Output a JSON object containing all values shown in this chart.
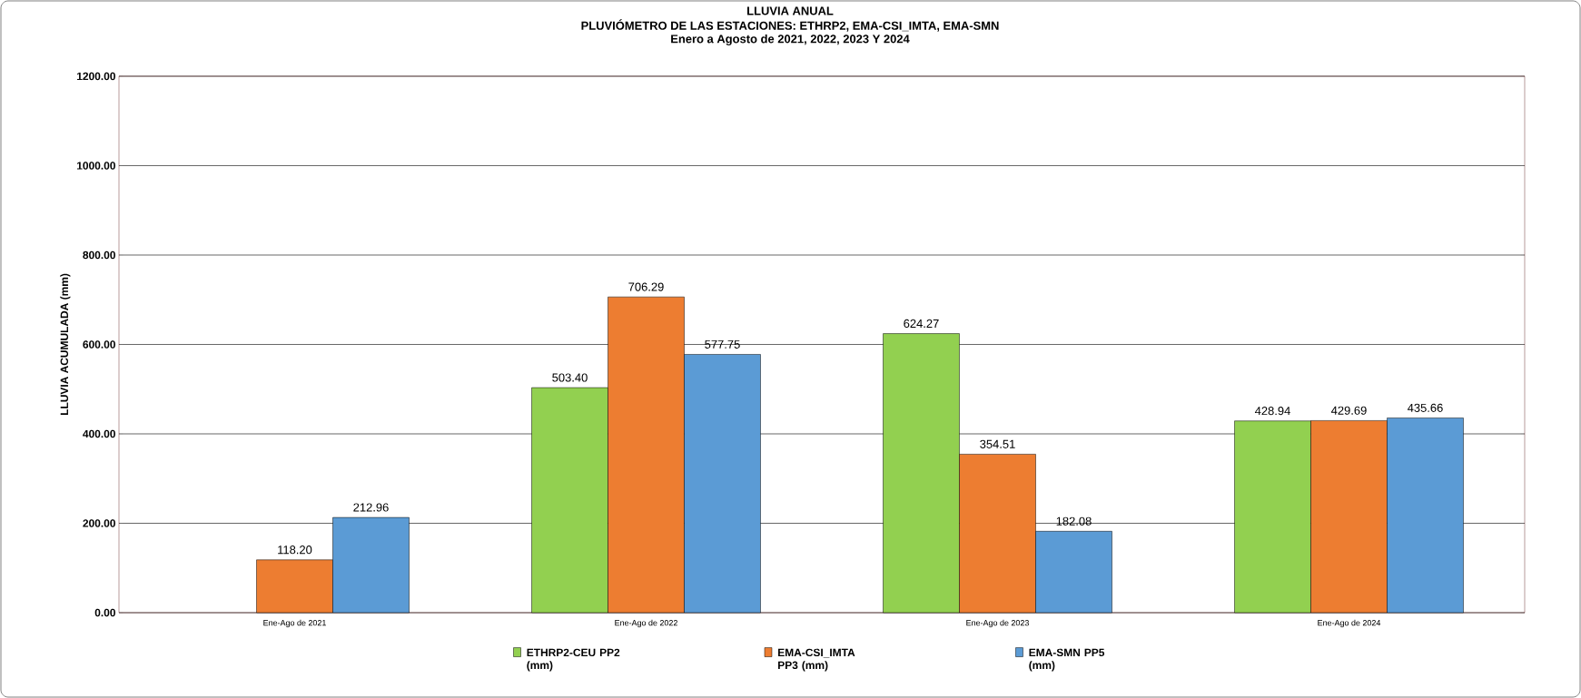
{
  "chart_data": {
    "type": "bar",
    "title": "LLUVIA ANUAL",
    "subtitle": "PLUVIÓMETRO DE LAS ESTACIONES: ETHRP2, EMA-CSI_IMTA,  EMA-SMN",
    "annotations": [
      "Enero a Agosto de 2021, 2022, 2023 Y 2024"
    ],
    "ylabel": "LLUVIA ACUMULADA (mm)",
    "categories": [
      "Ene-Ago de 2021",
      "Ene-Ago de 2022",
      "Ene-Ago de 2023",
      "Ene-Ago de 2024"
    ],
    "series": [
      {
        "name": "ETHRP2-CEU PP2 (mm)",
        "color": "#92d050",
        "values": [
          null,
          503.4,
          624.27,
          428.94
        ],
        "value_labels": [
          null,
          "503.40",
          "624.27",
          "428.94"
        ]
      },
      {
        "name": "EMA-CSI_IMTA PP3 (mm)",
        "color": "#ed7d31",
        "values": [
          118.2,
          706.29,
          354.51,
          429.69
        ],
        "value_labels": [
          "118.20",
          "706.29",
          "354.51",
          "429.69"
        ]
      },
      {
        "name": "EMA-SMN PP5 (mm)",
        "color": "#5b9bd5",
        "values": [
          212.96,
          577.75,
          182.08,
          435.66
        ],
        "value_labels": [
          "212.96",
          "577.75",
          "182.08",
          "435.66"
        ]
      }
    ],
    "ylim": [
      0,
      1200
    ],
    "yticks": [
      {
        "value": 0,
        "label": "0.00"
      },
      {
        "value": 200,
        "label": "200.00"
      },
      {
        "value": 400,
        "label": "400.00"
      },
      {
        "value": 600,
        "label": "600.00"
      },
      {
        "value": 800,
        "label": "800.00"
      },
      {
        "value": 1000,
        "label": "1000.00"
      },
      {
        "value": 1200,
        "label": "1200.00"
      }
    ],
    "grid": "y",
    "legend": "bottom"
  }
}
